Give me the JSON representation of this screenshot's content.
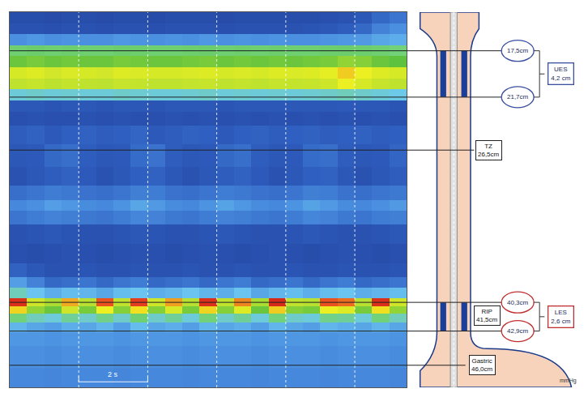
{
  "chart_data": {
    "type": "heatmap",
    "unit": "mmHg",
    "x": [
      0.25,
      0.75,
      1.25,
      1.75,
      2.25,
      2.75,
      3.25,
      3.75,
      4.25,
      4.75,
      5.25,
      5.75,
      6.25,
      6.75,
      7.25,
      7.75,
      8.25,
      8.75,
      9.25,
      9.75,
      10.25,
      10.75,
      11.25
    ],
    "y": [
      14.5,
      15.5,
      16.5,
      17.5,
      18.5,
      19.5,
      20.5,
      21.5,
      22.5,
      23.5,
      25,
      27,
      29,
      30.5,
      31.5,
      32.5,
      34,
      36,
      37.5,
      38.5,
      39.5,
      40.3,
      41,
      41.7,
      42.5,
      43.5,
      45,
      47.5
    ],
    "cells": [
      [
        8,
        8,
        7,
        8,
        8,
        7,
        8,
        8,
        7,
        8,
        8,
        8,
        7,
        8,
        8,
        8,
        8,
        8,
        9,
        10,
        12,
        18,
        22
      ],
      [
        10,
        10,
        9,
        10,
        10,
        9,
        10,
        10,
        9,
        10,
        10,
        10,
        9,
        10,
        10,
        10,
        10,
        11,
        12,
        14,
        18,
        26,
        30
      ],
      [
        30,
        32,
        30,
        31,
        30,
        30,
        32,
        31,
        30,
        31,
        30,
        32,
        30,
        31,
        30,
        31,
        30,
        30,
        31,
        32,
        33,
        36,
        38
      ],
      [
        62,
        64,
        62,
        63,
        62,
        62,
        64,
        63,
        62,
        62,
        63,
        64,
        62,
        63,
        62,
        63,
        62,
        62,
        63,
        64,
        63,
        62,
        60
      ],
      [
        78,
        80,
        78,
        79,
        78,
        78,
        80,
        79,
        78,
        78,
        79,
        80,
        78,
        79,
        78,
        79,
        78,
        79,
        80,
        84,
        82,
        78,
        76
      ],
      [
        98,
        100,
        97,
        99,
        98,
        97,
        100,
        99,
        98,
        98,
        99,
        100,
        98,
        99,
        98,
        100,
        99,
        100,
        102,
        112,
        104,
        100,
        98
      ],
      [
        92,
        94,
        91,
        93,
        92,
        91,
        94,
        93,
        92,
        92,
        93,
        94,
        92,
        93,
        92,
        94,
        93,
        94,
        96,
        104,
        98,
        94,
        92
      ],
      [
        48,
        50,
        48,
        49,
        48,
        48,
        50,
        49,
        48,
        48,
        49,
        50,
        48,
        49,
        48,
        49,
        48,
        49,
        50,
        52,
        50,
        48,
        46
      ],
      [
        12,
        12,
        11,
        12,
        12,
        11,
        12,
        12,
        11,
        12,
        12,
        12,
        11,
        12,
        12,
        12,
        12,
        12,
        12,
        13,
        12,
        12,
        11
      ],
      [
        9,
        10,
        9,
        9,
        10,
        9,
        10,
        9,
        9,
        10,
        9,
        10,
        9,
        10,
        9,
        10,
        9,
        10,
        9,
        10,
        9,
        10,
        9
      ],
      [
        14,
        16,
        13,
        15,
        16,
        14,
        15,
        17,
        13,
        14,
        16,
        15,
        13,
        15,
        16,
        14,
        15,
        16,
        14,
        15,
        16,
        14,
        15
      ],
      [
        12,
        13,
        18,
        20,
        14,
        12,
        13,
        19,
        21,
        14,
        12,
        13,
        18,
        20,
        14,
        12,
        13,
        19,
        20,
        14,
        12,
        13,
        17
      ],
      [
        10,
        12,
        14,
        16,
        13,
        10,
        12,
        15,
        16,
        12,
        10,
        12,
        14,
        16,
        13,
        10,
        12,
        15,
        16,
        12,
        10,
        12,
        14
      ],
      [
        20,
        22,
        24,
        23,
        21,
        20,
        22,
        25,
        24,
        21,
        20,
        22,
        24,
        23,
        21,
        20,
        22,
        25,
        24,
        21,
        20,
        22,
        23
      ],
      [
        28,
        30,
        34,
        32,
        29,
        28,
        31,
        36,
        33,
        29,
        28,
        31,
        35,
        32,
        29,
        28,
        31,
        35,
        33,
        29,
        28,
        30,
        33
      ],
      [
        22,
        24,
        26,
        25,
        23,
        22,
        24,
        27,
        26,
        23,
        22,
        24,
        26,
        25,
        23,
        22,
        24,
        27,
        26,
        23,
        22,
        24,
        25
      ],
      [
        10,
        11,
        12,
        11,
        10,
        10,
        11,
        12,
        11,
        10,
        10,
        11,
        12,
        11,
        10,
        10,
        11,
        12,
        11,
        10,
        10,
        11,
        12
      ],
      [
        9,
        8,
        9,
        10,
        9,
        8,
        9,
        10,
        9,
        8,
        9,
        10,
        9,
        8,
        9,
        10,
        9,
        8,
        9,
        10,
        9,
        8,
        9
      ],
      [
        16,
        12,
        10,
        10,
        11,
        10,
        10,
        11,
        10,
        10,
        11,
        10,
        10,
        11,
        10,
        10,
        11,
        10,
        10,
        11,
        10,
        10,
        11
      ],
      [
        34,
        26,
        18,
        20,
        22,
        18,
        22,
        24,
        18,
        20,
        22,
        18,
        22,
        24,
        18,
        20,
        22,
        18,
        22,
        24,
        18,
        20,
        22
      ],
      [
        52,
        44,
        38,
        42,
        40,
        36,
        42,
        44,
        38,
        40,
        44,
        40,
        38,
        44,
        36,
        40,
        42,
        38,
        42,
        44,
        38,
        40,
        42
      ],
      [
        140,
        96,
        88,
        118,
        90,
        132,
        92,
        136,
        96,
        120,
        90,
        140,
        92,
        124,
        88,
        142,
        92,
        90,
        132,
        128,
        90,
        140,
        96
      ],
      [
        110,
        84,
        78,
        96,
        80,
        104,
        82,
        108,
        82,
        98,
        80,
        110,
        82,
        100,
        78,
        112,
        82,
        80,
        104,
        100,
        80,
        108,
        84
      ],
      [
        60,
        52,
        48,
        56,
        50,
        58,
        50,
        62,
        50,
        56,
        48,
        60,
        50,
        56,
        48,
        60,
        50,
        48,
        58,
        56,
        48,
        60,
        52
      ],
      [
        40,
        36,
        34,
        38,
        36,
        40,
        34,
        42,
        36,
        38,
        34,
        40,
        36,
        38,
        34,
        40,
        36,
        34,
        40,
        38,
        36,
        40,
        36
      ],
      [
        32,
        32,
        31,
        32,
        32,
        32,
        31,
        32,
        32,
        32,
        31,
        32,
        32,
        32,
        31,
        32,
        32,
        32,
        31,
        32,
        32,
        32,
        31
      ],
      [
        30,
        30,
        29,
        30,
        30,
        30,
        29,
        30,
        30,
        30,
        29,
        30,
        30,
        30,
        29,
        30,
        30,
        30,
        29,
        30,
        30,
        30,
        29
      ],
      [
        28,
        28,
        27,
        28,
        28,
        28,
        27,
        28,
        28,
        28,
        27,
        28,
        28,
        28,
        27,
        28,
        28,
        28,
        27,
        28,
        28,
        28,
        27
      ]
    ],
    "zlim": [
      0,
      150
    ],
    "xlim": [
      0,
      11.5
    ],
    "ylim": [
      48,
      14
    ],
    "xticks": [
      2,
      4,
      6,
      8,
      10
    ],
    "yticks": [],
    "grid": true,
    "tick_labels": false,
    "scale_bar": {
      "start": 2,
      "value": 2,
      "label": "2 s"
    },
    "landmarks": {
      "UES": {
        "label": "UES",
        "length": 4.2,
        "length_label": "4,2 cm",
        "upper": {
          "value": 17.5,
          "label": "17,5cm"
        },
        "lower": {
          "value": 21.7,
          "label": "21,7cm"
        }
      },
      "LES": {
        "label": "LES",
        "length": 2.6,
        "length_label": "2,6 cm",
        "upper": {
          "value": 40.3,
          "label": "40,3cm"
        },
        "lower": {
          "value": 42.9,
          "label": "42,9cm"
        }
      },
      "TZ": {
        "label": "TZ",
        "value": 26.5,
        "value_label": "26,5cm"
      },
      "RIP": {
        "label": "RIP",
        "value": 41.5,
        "value_label": "41,5cm"
      },
      "Gastric": {
        "label": "Gastric",
        "value": 46.0,
        "value_label": "46,0cm"
      }
    }
  }
}
